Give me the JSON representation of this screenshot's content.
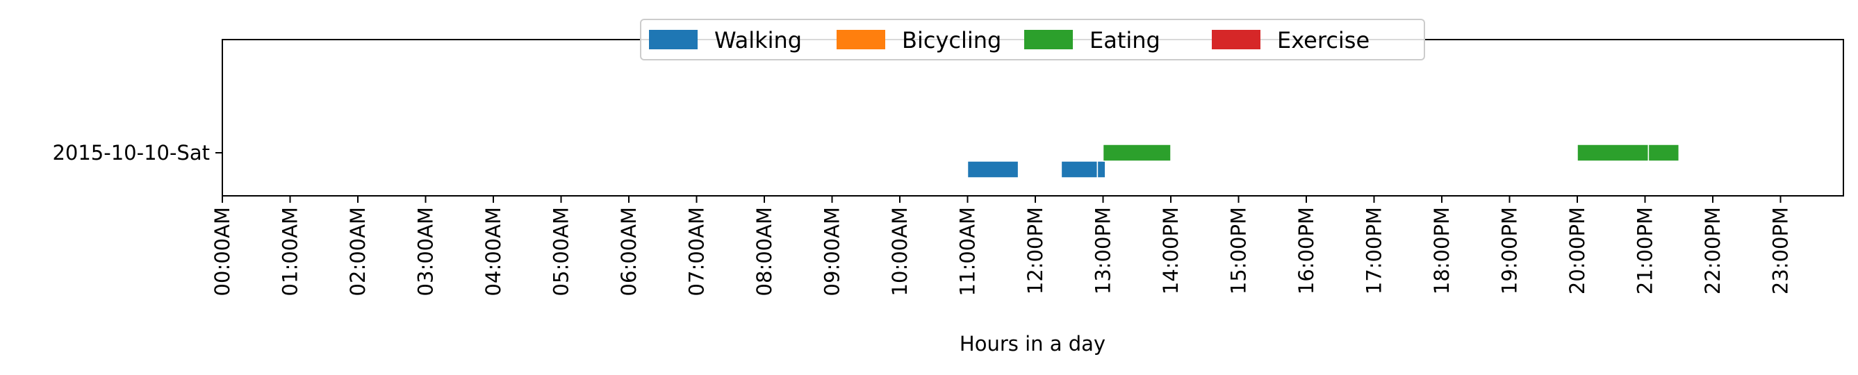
{
  "chart_data": {
    "type": "timeline",
    "title": "",
    "xlabel": "Hours in a day",
    "ylabel": "",
    "xlim_hours": [
      0,
      24
    ],
    "x_ticks": [
      "00:00AM",
      "01:00AM",
      "02:00AM",
      "03:00AM",
      "04:00AM",
      "05:00AM",
      "06:00AM",
      "07:00AM",
      "08:00AM",
      "09:00AM",
      "10:00AM",
      "11:00AM",
      "12:00PM",
      "13:00PM",
      "14:00PM",
      "15:00PM",
      "16:00PM",
      "17:00PM",
      "18:00PM",
      "19:00PM",
      "20:00PM",
      "21:00PM",
      "22:00PM",
      "23:00PM"
    ],
    "categories": [
      "2015-10-10-Sat"
    ],
    "legend_position": "top-center",
    "grid": false,
    "series": [
      {
        "name": "Walking",
        "color": "#1f77b4",
        "intervals": [
          {
            "day": "2015-10-10-Sat",
            "start": "11:00",
            "end": "11:45"
          },
          {
            "day": "2015-10-10-Sat",
            "start": "12:23",
            "end": "12:55"
          },
          {
            "day": "2015-10-10-Sat",
            "start": "12:55",
            "end": "13:02"
          }
        ]
      },
      {
        "name": "Bicycling",
        "color": "#ff7f0e",
        "intervals": []
      },
      {
        "name": "Eating",
        "color": "#2ca02c",
        "intervals": [
          {
            "day": "2015-10-10-Sat",
            "start": "13:00",
            "end": "14:00"
          },
          {
            "day": "2015-10-10-Sat",
            "start": "20:00",
            "end": "21:03"
          },
          {
            "day": "2015-10-10-Sat",
            "start": "21:03",
            "end": "21:30"
          }
        ]
      },
      {
        "name": "Exercise",
        "color": "#d62728",
        "intervals": []
      }
    ]
  }
}
